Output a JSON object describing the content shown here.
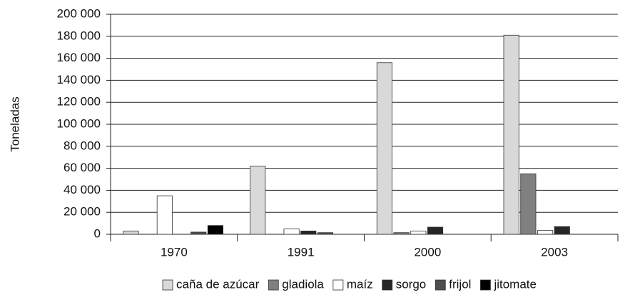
{
  "chart_data": {
    "type": "bar",
    "y_label": "Toneladas",
    "categories": [
      "1970",
      "1991",
      "2000",
      "2003"
    ],
    "series": [
      {
        "name": "caña de azúcar",
        "color": "#d9d9d9",
        "values": [
          3000,
          62000,
          156000,
          181000
        ]
      },
      {
        "name": "gladiola",
        "color": "#808080",
        "values": [
          0,
          0,
          1500,
          55000
        ]
      },
      {
        "name": "maíz",
        "color": "#ffffff",
        "values": [
          35000,
          5000,
          3000,
          3500
        ]
      },
      {
        "name": "sorgo",
        "color": "#262626",
        "values": [
          0,
          3000,
          6500,
          7000
        ]
      },
      {
        "name": "frijol",
        "color": "#4d4d4d",
        "values": [
          2000,
          1500,
          0,
          0
        ]
      },
      {
        "name": "jitomate",
        "color": "#000000",
        "values": [
          8000,
          0,
          0,
          0
        ]
      }
    ],
    "ylim": [
      0,
      200000
    ],
    "yticks": [
      0,
      {
        "value": 20000,
        "label": "20 000"
      },
      {
        "value": 40000,
        "label": "40 000"
      },
      {
        "value": 60000,
        "label": "60 000"
      },
      {
        "value": 80000,
        "label": "80 000"
      },
      {
        "value": 100000,
        "label": "100 000"
      },
      {
        "value": 120000,
        "label": "120 000"
      },
      {
        "value": 140000,
        "label": "140 000"
      },
      {
        "value": 160000,
        "label": "160 000"
      },
      {
        "value": 180000,
        "label": "180 000"
      },
      {
        "value": 200000,
        "label": "200 000"
      }
    ],
    "grid": true,
    "legend": "bottom"
  }
}
